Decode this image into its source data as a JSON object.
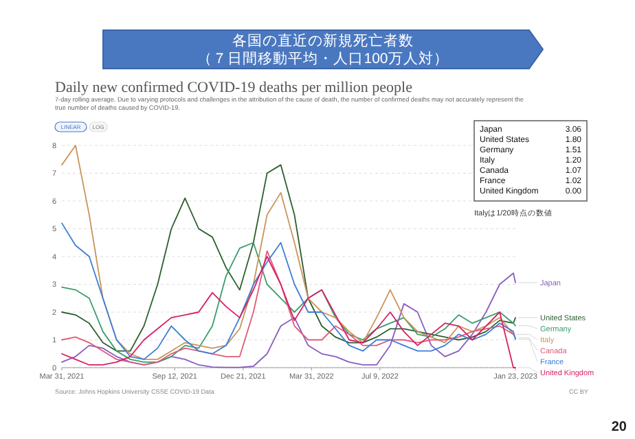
{
  "chart_data": [
    {
      "type": "line",
      "title": "各国の直近の新規死亡者数",
      "subtitle": "（７日間移動平均・人口100万人対）",
      "annotations": [
        "Daily new confirmed COVID-19 deaths per million people",
        "7-day rolling average. Due to varying protocols and challenges in the attribution of the cause of death, the number of confirmed deaths may not accurately represent the true number of deaths caused by COVID-19.",
        "LINEAR",
        "LOG",
        "Source: Johns Hopkins University CSSE COVID-19 Data",
        "CC BY",
        "Italyは1/20時点の数値",
        "20"
      ],
      "x": [
        "2021-03-31",
        "2021-04-20",
        "2021-05-10",
        "2021-05-30",
        "2021-06-19",
        "2021-07-09",
        "2021-07-29",
        "2021-08-18",
        "2021-09-07",
        "2021-09-27",
        "2021-10-17",
        "2021-11-06",
        "2021-11-26",
        "2021-12-16",
        "2022-01-05",
        "2022-01-25",
        "2022-02-14",
        "2022-03-06",
        "2022-03-26",
        "2022-04-15",
        "2022-05-05",
        "2022-05-25",
        "2022-06-14",
        "2022-07-04",
        "2022-07-24",
        "2022-08-13",
        "2022-09-02",
        "2022-09-22",
        "2022-10-12",
        "2022-11-01",
        "2022-11-21",
        "2022-12-11",
        "2022-12-31",
        "2023-01-20",
        "2023-01-23"
      ],
      "xlim": [
        "2021-03-31",
        "2023-01-23"
      ],
      "xticks": [
        {
          "value": "2021-03-31",
          "label": "Mar 31, 2021"
        },
        {
          "value": "2021-09-12",
          "label": "Sep 12, 2021"
        },
        {
          "value": "2021-12-21",
          "label": "Dec 21, 2021"
        },
        {
          "value": "2022-03-31",
          "label": "Mar 31, 2022"
        },
        {
          "value": "2022-07-09",
          "label": "Jul 9, 2022"
        },
        {
          "value": "2023-01-23",
          "label": "Jan 23, 2023"
        }
      ],
      "ylim": [
        0,
        8
      ],
      "yticks": [
        0,
        1,
        2,
        3,
        4,
        5,
        6,
        7,
        8
      ],
      "grid": "y",
      "series": [
        {
          "name": "Japan",
          "color": "#8a5cc2",
          "values": [
            0.2,
            0.4,
            0.8,
            0.7,
            0.4,
            0.2,
            0.1,
            0.2,
            0.4,
            0.3,
            0.1,
            0.02,
            0.01,
            0.01,
            0.05,
            0.5,
            1.5,
            1.8,
            0.8,
            0.5,
            0.4,
            0.2,
            0.1,
            0.1,
            0.8,
            2.3,
            2.0,
            0.8,
            0.4,
            0.6,
            1.2,
            2.0,
            3.0,
            3.4,
            3.06
          ]
        },
        {
          "name": "United States",
          "color": "#2e5e2e",
          "values": [
            2.0,
            1.9,
            1.6,
            0.9,
            0.6,
            0.6,
            1.5,
            3.0,
            5.0,
            6.1,
            5.0,
            4.7,
            3.6,
            2.8,
            4.5,
            7.0,
            7.3,
            5.5,
            2.5,
            1.5,
            1.1,
            0.9,
            0.9,
            1.1,
            1.4,
            1.4,
            1.3,
            1.2,
            1.1,
            1.0,
            1.1,
            1.3,
            1.7,
            1.6,
            1.8
          ]
        },
        {
          "name": "Germany",
          "color": "#3a9c6c",
          "values": [
            2.9,
            2.8,
            2.5,
            1.3,
            0.6,
            0.3,
            0.2,
            0.2,
            0.4,
            0.8,
            0.7,
            1.5,
            3.3,
            4.3,
            4.5,
            3.0,
            2.5,
            2.0,
            2.5,
            2.8,
            1.8,
            1.2,
            1.0,
            1.4,
            1.6,
            1.8,
            1.2,
            1.1,
            1.4,
            1.9,
            1.6,
            1.8,
            2.0,
            1.6,
            1.51
          ]
        },
        {
          "name": "Italy",
          "color": "#c8955a",
          "values": [
            7.3,
            8.0,
            5.5,
            2.5,
            1.0,
            0.5,
            0.3,
            0.3,
            0.6,
            0.9,
            0.8,
            0.7,
            0.8,
            1.4,
            3.0,
            5.5,
            6.3,
            4.5,
            2.5,
            2.0,
            1.8,
            1.3,
            0.9,
            1.8,
            2.8,
            1.8,
            1.3,
            1.1,
            0.9,
            1.5,
            1.3,
            1.5,
            1.8,
            1.2,
            null
          ]
        },
        {
          "name": "Canada",
          "color": "#e05a78",
          "values": [
            1.0,
            1.1,
            0.9,
            0.6,
            0.3,
            0.2,
            0.1,
            0.2,
            0.5,
            0.7,
            0.6,
            0.5,
            0.4,
            0.4,
            2.0,
            4.2,
            3.0,
            1.5,
            1.0,
            1.0,
            1.5,
            1.2,
            0.8,
            0.8,
            1.0,
            1.0,
            0.9,
            1.0,
            1.0,
            1.1,
            1.3,
            1.4,
            1.5,
            1.2,
            1.07
          ]
        },
        {
          "name": "France",
          "color": "#3b7dd8",
          "values": [
            5.2,
            4.4,
            4.0,
            2.5,
            1.0,
            0.4,
            0.3,
            0.7,
            1.5,
            1.0,
            0.6,
            0.5,
            0.8,
            1.8,
            3.0,
            3.8,
            4.5,
            3.0,
            2.0,
            2.0,
            1.4,
            0.8,
            0.6,
            1.0,
            1.0,
            0.8,
            0.6,
            0.6,
            0.8,
            1.2,
            1.0,
            1.2,
            1.6,
            1.3,
            1.02
          ]
        },
        {
          "name": "United Kingdom",
          "color": "#d81e64",
          "values": [
            0.5,
            0.3,
            0.1,
            0.1,
            0.2,
            0.4,
            1.0,
            1.4,
            1.8,
            1.9,
            2.0,
            2.7,
            2.2,
            1.8,
            2.8,
            4.0,
            3.0,
            1.7,
            2.5,
            2.8,
            1.9,
            1.0,
            0.9,
            1.4,
            2.0,
            1.3,
            0.8,
            1.2,
            1.6,
            1.5,
            1.0,
            1.5,
            2.0,
            0.0,
            0.0
          ]
        }
      ]
    },
    {
      "type": "other",
      "annotations": [
        "Japan",
        "3.06",
        "United States",
        "1.80",
        "Germany",
        "1.51",
        "Italy",
        "1.20",
        "Canada",
        "1.07",
        "France",
        "1.02",
        "United Kingdom",
        "0.00"
      ]
    }
  ]
}
